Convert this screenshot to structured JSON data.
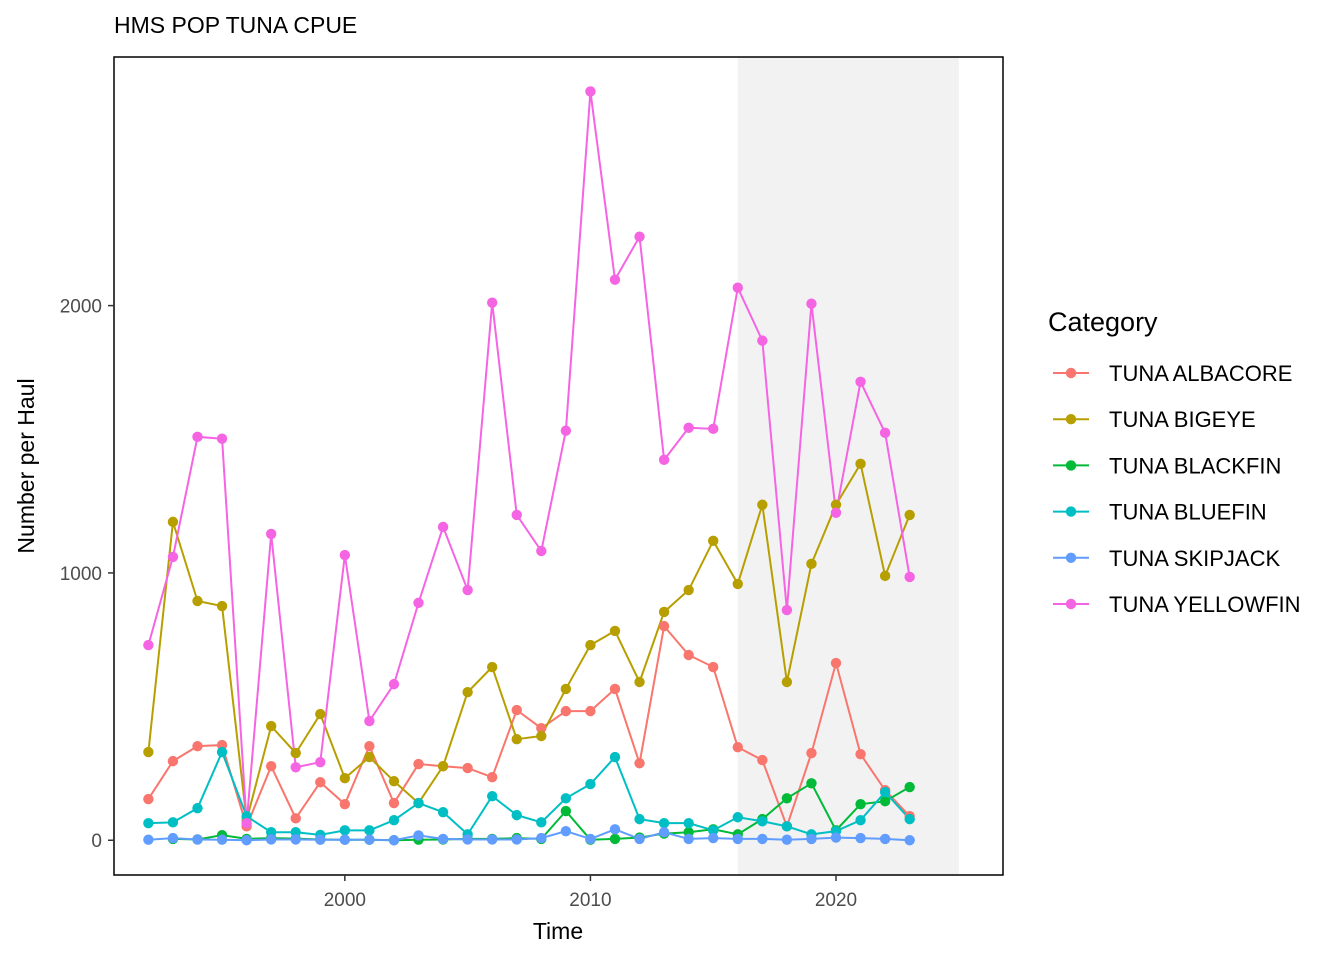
{
  "chart_data": {
    "type": "line",
    "title": "HMS POP TUNA CPUE",
    "xlabel": "Time",
    "ylabel": "Number per Haul",
    "xlim": [
      1990.6,
      2026.8
    ],
    "ylim": [
      -130,
      2930
    ],
    "xticks": [
      2000,
      2010,
      2020
    ],
    "yticks": [
      0,
      1000,
      2000
    ],
    "grid": false,
    "shaded_region": {
      "x": [
        2016,
        2025
      ],
      "color": "#f2f2f2"
    },
    "legend": {
      "title": "Category",
      "placement": "right"
    },
    "x": [
      1992,
      1993,
      1994,
      1995,
      1996,
      1997,
      1998,
      1999,
      2000,
      2001,
      2002,
      2003,
      2004,
      2005,
      2006,
      2007,
      2008,
      2009,
      2010,
      2011,
      2012,
      2013,
      2014,
      2015,
      2016,
      2017,
      2018,
      2019,
      2020,
      2021,
      2022,
      2023
    ],
    "series": [
      {
        "name": "TUNA ALBACORE",
        "color": "#F8766D",
        "values": [
          154,
          296,
          352,
          356,
          52,
          277,
          82,
          217,
          135,
          352,
          139,
          285,
          277,
          270,
          236,
          487,
          419,
          483,
          483,
          566,
          288,
          801,
          693,
          648,
          348,
          300,
          52,
          326,
          663,
          322,
          187,
          90
        ]
      },
      {
        "name": "TUNA BIGEYE",
        "color": "#B79F00",
        "values": [
          330,
          1191,
          895,
          876,
          75,
          427,
          326,
          472,
          232,
          311,
          221,
          139,
          277,
          554,
          648,
          378,
          390,
          566,
          730,
          783,
          592,
          854,
          936,
          1120,
          959,
          1255,
          592,
          1034,
          1255,
          1408,
          989,
          1217
        ]
      },
      {
        "name": "TUNA BLACKFIN",
        "color": "#00BA38",
        "values": [
          null,
          5,
          3,
          19,
          5,
          8,
          6,
          3,
          2,
          2,
          0,
          2,
          3,
          5,
          5,
          8,
          5,
          109,
          2,
          5,
          10,
          25,
          30,
          41,
          22,
          79,
          157,
          213,
          37,
          135,
          146,
          199
        ]
      },
      {
        "name": "TUNA BLUEFIN",
        "color": "#00BFC4",
        "values": [
          64,
          67,
          120,
          330,
          90,
          30,
          30,
          20,
          37,
          37,
          75,
          139,
          105,
          22,
          165,
          94,
          67,
          157,
          210,
          311,
          79,
          64,
          64,
          37,
          86,
          71,
          52,
          22,
          34,
          75,
          180,
          79
        ]
      },
      {
        "name": "TUNA SKIPJACK",
        "color": "#619CFF",
        "values": [
          2,
          8,
          3,
          2,
          0,
          3,
          3,
          2,
          2,
          2,
          0,
          18,
          5,
          3,
          3,
          3,
          8,
          34,
          5,
          41,
          5,
          30,
          5,
          8,
          5,
          5,
          2,
          5,
          10,
          8,
          5,
          0
        ]
      },
      {
        "name": "TUNA YELLOWFIN",
        "color": "#F564E3",
        "values": [
          730,
          1060,
          1509,
          1502,
          64,
          1146,
          273,
          292,
          1067,
          446,
          584,
          888,
          1172,
          936,
          2011,
          1217,
          1082,
          1532,
          2801,
          2097,
          2258,
          1423,
          1543,
          1539,
          2067,
          1869,
          861,
          2007,
          1225,
          1715,
          1524,
          985
        ]
      }
    ]
  }
}
